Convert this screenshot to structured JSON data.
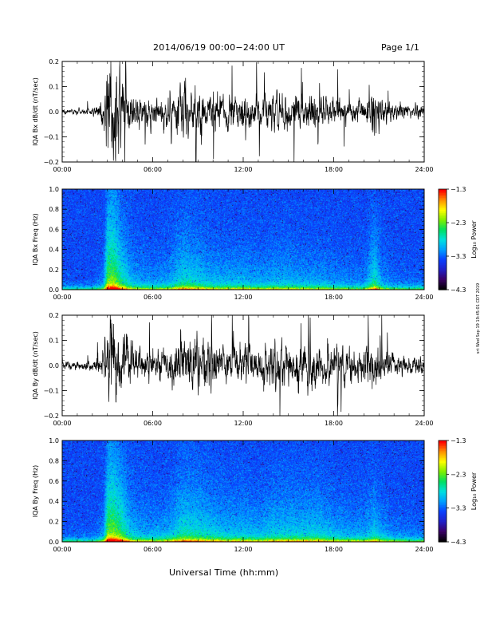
{
  "header": {
    "date_range": "2014/06/19   00:00−24:00 UT",
    "page": "Page 1/1"
  },
  "footer": {
    "xlabel": "Universal Time (hh:mm)",
    "stamp": "srt Wed Sep 19 19:45:01 CDT 2019"
  },
  "colors": {
    "trace": "#000000",
    "colormap": [
      "#000000",
      "#3a0066",
      "#2020c8",
      "#0a40ff",
      "#00a0ff",
      "#00e0e0",
      "#00e060",
      "#80f000",
      "#ffff00",
      "#ff9000",
      "#ff0000"
    ]
  },
  "chart_data": [
    {
      "type": "line",
      "ylabel": "IQA Bx dB/dt (nT/sec)",
      "xlim": [
        0,
        24
      ],
      "ylim": [
        -0.2,
        0.2
      ],
      "x_tick_labels": [
        "00:00",
        "06:00",
        "12:00",
        "18:00",
        "24:00"
      ],
      "y_ticks": [
        -0.2,
        -0.1,
        0.0,
        0.1,
        0.2
      ],
      "y_tick_labels": [
        "−0.2",
        "−0.1",
        "0.0",
        "0.1",
        "0.2"
      ],
      "envelope_hours": [
        0,
        1,
        2,
        2.7,
        3.0,
        3.4,
        3.8,
        4.5,
        5,
        6,
        7,
        8,
        9,
        10,
        11,
        12,
        13,
        14,
        15,
        16,
        17,
        18,
        19,
        20,
        20.7,
        21.2,
        22,
        23,
        24
      ],
      "envelope_amplitude": [
        0.012,
        0.012,
        0.015,
        0.05,
        0.2,
        0.2,
        0.15,
        0.09,
        0.07,
        0.06,
        0.07,
        0.12,
        0.1,
        0.08,
        0.08,
        0.08,
        0.07,
        0.08,
        0.08,
        0.07,
        0.07,
        0.06,
        0.05,
        0.05,
        0.13,
        0.06,
        0.04,
        0.03,
        0.03
      ]
    },
    {
      "type": "heatmap",
      "ylabel": "IQA Bx Freq (Hz)",
      "colorbar_label": "Log₁₀ Power",
      "xlim": [
        0,
        24
      ],
      "ylim": [
        0.0,
        1.0
      ],
      "clim": [
        -4.3,
        -1.3
      ],
      "x_tick_labels": [
        "00:00",
        "06:00",
        "12:00",
        "18:00",
        "24:00"
      ],
      "y_ticks": [
        0.0,
        0.2,
        0.4,
        0.6,
        0.8,
        1.0
      ],
      "y_tick_labels": [
        "0.0",
        "0.2",
        "0.4",
        "0.6",
        "0.8",
        "1.0"
      ],
      "colorbar_ticks": [
        -4.3,
        -3.3,
        -2.3,
        -1.3
      ],
      "colorbar_tick_labels": [
        "−4.3",
        "−3.3",
        "−2.3",
        "−1.3"
      ]
    },
    {
      "type": "line",
      "ylabel": "IQA By dB/dt (nT/sec)",
      "xlim": [
        0,
        24
      ],
      "ylim": [
        -0.2,
        0.2
      ],
      "x_tick_labels": [
        "00:00",
        "06:00",
        "12:00",
        "18:00",
        "24:00"
      ],
      "y_ticks": [
        -0.2,
        -0.1,
        0.0,
        0.1,
        0.2
      ],
      "y_tick_labels": [
        "−0.2",
        "−0.1",
        "0.0",
        "0.1",
        "0.2"
      ],
      "envelope_hours": [
        0,
        1,
        2,
        2.7,
        3.0,
        3.4,
        3.8,
        4.5,
        5,
        6,
        7,
        8,
        9,
        10,
        11,
        12,
        13,
        14,
        15,
        16,
        17,
        18,
        19,
        20,
        20.7,
        21.2,
        22,
        23,
        24
      ],
      "envelope_amplitude": [
        0.018,
        0.02,
        0.02,
        0.06,
        0.2,
        0.2,
        0.17,
        0.1,
        0.08,
        0.07,
        0.08,
        0.13,
        0.12,
        0.1,
        0.09,
        0.09,
        0.08,
        0.1,
        0.1,
        0.1,
        0.1,
        0.08,
        0.07,
        0.07,
        0.1,
        0.07,
        0.05,
        0.04,
        0.04
      ]
    },
    {
      "type": "heatmap",
      "ylabel": "IQA By Freq (Hz)",
      "colorbar_label": "Log₁₀ Power",
      "xlim": [
        0,
        24
      ],
      "ylim": [
        0.0,
        1.0
      ],
      "clim": [
        -4.3,
        -1.3
      ],
      "x_tick_labels": [
        "00:00",
        "06:00",
        "12:00",
        "18:00",
        "24:00"
      ],
      "y_ticks": [
        0.0,
        0.2,
        0.4,
        0.6,
        0.8,
        1.0
      ],
      "y_tick_labels": [
        "0.0",
        "0.2",
        "0.4",
        "0.6",
        "0.8",
        "1.0"
      ],
      "colorbar_ticks": [
        -4.3,
        -3.3,
        -2.3,
        -1.3
      ],
      "colorbar_tick_labels": [
        "−4.3",
        "−3.3",
        "−2.3",
        "−1.3"
      ]
    }
  ]
}
